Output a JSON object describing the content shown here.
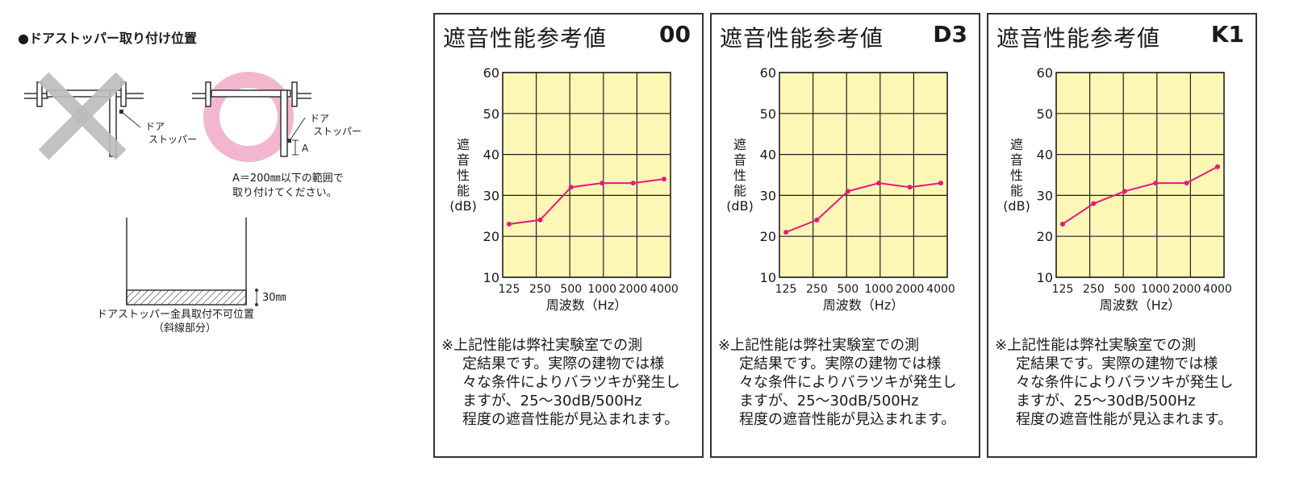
{
  "left": {
    "title": "●ドアストッパー取り付け位置",
    "label_door_stopper_1a": "ドア",
    "label_door_stopper_1b": "ストッパー",
    "label_door_stopper_2a": "ドア",
    "label_door_stopper_2b": "ストッパー",
    "label_a": "A",
    "range_note_1": "A＝200㎜以下の範囲で",
    "range_note_2": "取り付けてください。",
    "dim_30": "30㎜",
    "caption_1": "ドアストッパー金具取付不可位置",
    "caption_2": "（斜線部分）"
  },
  "colors": {
    "grid_bg": "#fdf6b5",
    "line": "#e6197c",
    "ok_ring": "#f3b6cf",
    "ng_cross": "#bcbcbc"
  },
  "chart_data": [
    {
      "type": "line",
      "title": "遮音性能参考値",
      "code": "00",
      "ylabel_lines": [
        "遮",
        "音",
        "性",
        "能",
        "(dB)"
      ],
      "xlabel": "周波数（Hz）",
      "categories": [
        "125",
        "250",
        "500",
        "1000",
        "2000",
        "4000"
      ],
      "yticks": [
        "60",
        "50",
        "40",
        "30",
        "20",
        "10"
      ],
      "ylim": [
        10,
        60
      ],
      "grid": true,
      "series": [
        {
          "values": [
            23,
            24,
            32,
            33,
            33,
            34
          ]
        }
      ],
      "note_1": "※上記性能は弊社実験室での測",
      "note_2": "定結果です。実際の建物では様",
      "note_3": "々な条件によりバラツキが発生し",
      "note_4": "ますが、25～30dB/500Hz",
      "note_5": "程度の遮音性能が見込まれます。"
    },
    {
      "type": "line",
      "title": "遮音性能参考値",
      "code": "D3",
      "ylabel_lines": [
        "遮",
        "音",
        "性",
        "能",
        "(dB)"
      ],
      "xlabel": "周波数（Hz）",
      "categories": [
        "125",
        "250",
        "500",
        "1000",
        "2000",
        "4000"
      ],
      "yticks": [
        "60",
        "50",
        "40",
        "30",
        "20",
        "10"
      ],
      "ylim": [
        10,
        60
      ],
      "grid": true,
      "series": [
        {
          "values": [
            21,
            24,
            31,
            33,
            32,
            33
          ]
        }
      ],
      "note_1": "※上記性能は弊社実験室での測",
      "note_2": "定結果です。実際の建物では様",
      "note_3": "々な条件によりバラツキが発生し",
      "note_4": "ますが、25～30dB/500Hz",
      "note_5": "程度の遮音性能が見込まれます。"
    },
    {
      "type": "line",
      "title": "遮音性能参考値",
      "code": "K1",
      "ylabel_lines": [
        "遮",
        "音",
        "性",
        "能",
        "(dB)"
      ],
      "xlabel": "周波数（Hz）",
      "categories": [
        "125",
        "250",
        "500",
        "1000",
        "2000",
        "4000"
      ],
      "yticks": [
        "60",
        "50",
        "40",
        "30",
        "20",
        "10"
      ],
      "ylim": [
        10,
        60
      ],
      "grid": true,
      "series": [
        {
          "values": [
            23,
            28,
            31,
            33,
            33,
            37
          ]
        }
      ],
      "note_1": "※上記性能は弊社実験室での測",
      "note_2": "定結果です。実際の建物では様",
      "note_3": "々な条件によりバラツキが発生し",
      "note_4": "ますが、25～30dB/500Hz",
      "note_5": "程度の遮音性能が見込まれます。"
    }
  ]
}
